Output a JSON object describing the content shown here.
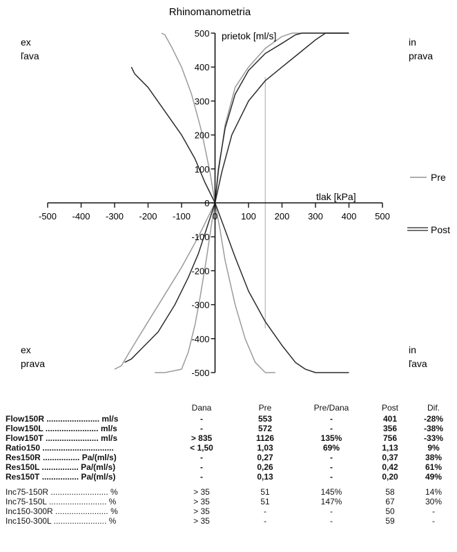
{
  "chart_data": {
    "type": "line",
    "title": "Rhinomanometria",
    "xlabel": "tlak [kPa]",
    "ylabel": "prietok [ml/s]",
    "xlim": [
      -500,
      500
    ],
    "ylim": [
      -500,
      500
    ],
    "x_ticks": [
      "-500",
      "-400",
      "-300",
      "-200",
      "-100",
      "0",
      "100",
      "200",
      "300",
      "400",
      "500"
    ],
    "y_ticks_pos": [
      "500",
      "400",
      "300",
      "200",
      "100",
      "0"
    ],
    "y_ticks_neg": [
      "-100",
      "-200",
      "-300",
      "-400",
      "-500"
    ],
    "reference_x": 150,
    "quadrant_labels": {
      "top_left": [
        "ex",
        "ľava"
      ],
      "top_right": [
        "in",
        "prava"
      ],
      "bottom_left": [
        "ex",
        "prava"
      ],
      "bottom_right": [
        "in",
        "ľava"
      ]
    },
    "legend": [
      {
        "label": "Pre",
        "style": "single",
        "color": "#909090"
      },
      {
        "label": "Post",
        "style": "double",
        "color": "#222222"
      }
    ],
    "series": [
      {
        "legend": "Pre",
        "color": "#9a9a9a",
        "x": [
          0,
          10,
          30,
          60,
          100,
          150,
          200,
          230,
          250,
          260,
          300,
          400
        ],
        "y": [
          0,
          90,
          230,
          340,
          400,
          455,
          490,
          500,
          500,
          500,
          500,
          500
        ]
      },
      {
        "legend": "Pre",
        "color": "#9a9a9a",
        "x": [
          0,
          -15,
          -40,
          -70,
          -100,
          -130,
          -150,
          -160
        ],
        "y": [
          0,
          90,
          210,
          320,
          400,
          460,
          495,
          500
        ]
      },
      {
        "legend": "Pre",
        "color": "#9a9a9a",
        "x": [
          0,
          -20,
          -50,
          -100,
          -150,
          -200,
          -250,
          -280,
          -300
        ],
        "y": [
          0,
          -40,
          -100,
          -190,
          -270,
          -350,
          -430,
          -480,
          -490
        ]
      },
      {
        "legend": "Pre",
        "color": "#9a9a9a",
        "x": [
          0,
          15,
          30,
          60,
          90,
          120,
          150,
          180
        ],
        "y": [
          0,
          -80,
          -170,
          -300,
          -400,
          -470,
          -500,
          -500
        ]
      },
      {
        "legend": "Pre",
        "color": "#9a9a9a",
        "x": [
          0,
          -10,
          -25,
          -45,
          -60,
          -80,
          -100,
          -150,
          -180
        ],
        "y": [
          0,
          -60,
          -160,
          -280,
          -360,
          -440,
          -490,
          -500,
          -500
        ]
      },
      {
        "legend": "Post",
        "color": "#2a2a2a",
        "x": [
          0,
          20,
          50,
          100,
          150,
          200,
          250,
          300,
          330,
          400
        ],
        "y": [
          0,
          90,
          200,
          300,
          360,
          400,
          440,
          480,
          500,
          500
        ]
      },
      {
        "legend": "Post",
        "color": "#2a2a2a",
        "x": [
          0,
          10,
          30,
          60,
          100,
          150,
          200,
          240,
          260,
          400
        ],
        "y": [
          0,
          100,
          220,
          320,
          390,
          440,
          470,
          495,
          500,
          500
        ]
      },
      {
        "legend": "Post",
        "color": "#2a2a2a",
        "x": [
          0,
          -30,
          -60,
          -100,
          -150,
          -200,
          -240,
          -245,
          -250
        ],
        "y": [
          0,
          60,
          130,
          200,
          270,
          340,
          380,
          390,
          400
        ]
      },
      {
        "legend": "Post",
        "color": "#2a2a2a",
        "x": [
          0,
          -20,
          -50,
          -80,
          -120,
          -170,
          -220,
          -250,
          -270
        ],
        "y": [
          0,
          -60,
          -150,
          -220,
          -300,
          -380,
          -430,
          -460,
          -470
        ]
      },
      {
        "legend": "Post",
        "color": "#2a2a2a",
        "x": [
          0,
          30,
          60,
          100,
          150,
          200,
          240,
          270,
          300,
          400
        ],
        "y": [
          0,
          -80,
          -160,
          -260,
          -350,
          -420,
          -470,
          -490,
          -500,
          -500
        ]
      }
    ]
  },
  "results": {
    "headers": [
      "",
      "Dana",
      "Pre",
      "Pre/Dana",
      "Post",
      "Dif."
    ],
    "rows": [
      {
        "bold": true,
        "cells": [
          "Flow150R ....................... ml/s",
          "-",
          "553",
          "-",
          "401",
          "-28%"
        ]
      },
      {
        "bold": true,
        "cells": [
          "Flow150L ....................... ml/s",
          "-",
          "572",
          "-",
          "356",
          "-38%"
        ]
      },
      {
        "bold": true,
        "cells": [
          "Flow150T ....................... ml/s",
          "> 835",
          "1126",
          "135%",
          "756",
          "-33%"
        ]
      },
      {
        "bold": true,
        "cells": [
          "Ratio150 ...............................",
          "< 1,50",
          "1,03",
          "69%",
          "1,13",
          "9%"
        ]
      },
      {
        "bold": true,
        "cells": [
          "Res150R ................ Pa/(ml/s)",
          "-",
          "0,27",
          "-",
          "0,37",
          "38%"
        ]
      },
      {
        "bold": true,
        "cells": [
          "Res150L ................ Pa/(ml/s)",
          "-",
          "0,26",
          "-",
          "0,42",
          "61%"
        ]
      },
      {
        "bold": true,
        "cells": [
          "Res150T ................ Pa/(ml/s)",
          "-",
          "0,13",
          "-",
          "0,20",
          "49%"
        ]
      },
      {
        "bold": false,
        "cells": [
          "Inc75-150R ......................... %",
          "> 35",
          "51",
          "145%",
          "58",
          "14%"
        ]
      },
      {
        "bold": false,
        "cells": [
          "Inc75-150L ......................... %",
          "> 35",
          "51",
          "147%",
          "67",
          "30%"
        ]
      },
      {
        "bold": false,
        "cells": [
          "Inc150-300R ....................... %",
          "> 35",
          "-",
          "-",
          "50",
          "-"
        ]
      },
      {
        "bold": false,
        "cells": [
          "Inc150-300L ....................... %",
          "> 35",
          "-",
          "-",
          "59",
          "-"
        ]
      }
    ]
  }
}
